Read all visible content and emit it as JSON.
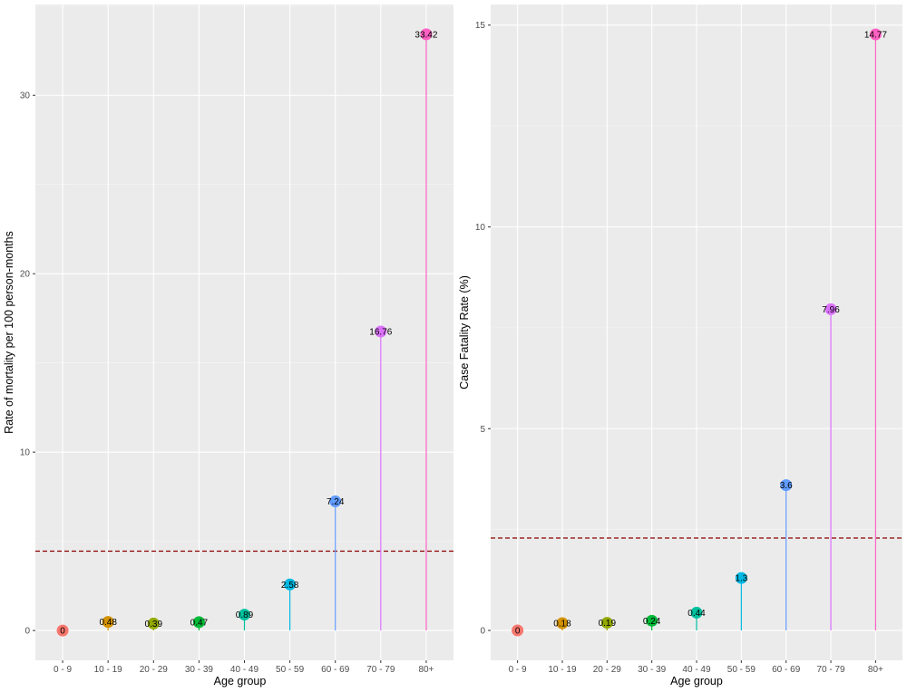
{
  "chart_data": [
    {
      "type": "lollipop",
      "categories": [
        "0 - 9",
        "10 - 19",
        "20 - 29",
        "30 - 39",
        "40 - 49",
        "50 - 59",
        "60 - 69",
        "70 - 79",
        "80+"
      ],
      "values": [
        0,
        0.48,
        0.39,
        0.47,
        0.89,
        2.58,
        7.24,
        16.76,
        33.42
      ],
      "labels": [
        "0",
        "0.48",
        "0.39",
        "0.47",
        "0.89",
        "2.58",
        "7.24",
        "16.76",
        "33.42"
      ],
      "xlabel": "Age group",
      "ylabel": "Rate of mortality per 100 person-months",
      "ylim": [
        -1.67,
        35.09
      ],
      "yticks": [
        0,
        10,
        20,
        30
      ],
      "reference_line": 4.45,
      "grid": true,
      "legend": "none"
    },
    {
      "type": "lollipop",
      "categories": [
        "0 - 9",
        "10 - 19",
        "20 - 29",
        "30 - 39",
        "40 - 49",
        "50 - 59",
        "60 - 69",
        "70 - 79",
        "80+"
      ],
      "values": [
        0,
        0.18,
        0.19,
        0.24,
        0.44,
        1.3,
        3.6,
        7.96,
        14.77
      ],
      "labels": [
        "0",
        "0.18",
        "0.19",
        "0.24",
        "0.44",
        "1.3",
        "3.6",
        "7.96",
        "14.77"
      ],
      "xlabel": "Age group",
      "ylabel": "Case Fatality Rate (%)",
      "ylim": [
        -0.74,
        15.51
      ],
      "yticks": [
        0,
        5,
        10,
        15
      ],
      "reference_line": 2.29,
      "grid": true,
      "legend": "none"
    }
  ],
  "colors": {
    "categories": [
      "#F8766D",
      "#D39200",
      "#93AA00",
      "#00BA38",
      "#00C19F",
      "#00B9E3",
      "#619CFF",
      "#DB72FB",
      "#FF61C3"
    ],
    "reference_line": "#8B0000",
    "panel_background": "#EBEBEB"
  }
}
